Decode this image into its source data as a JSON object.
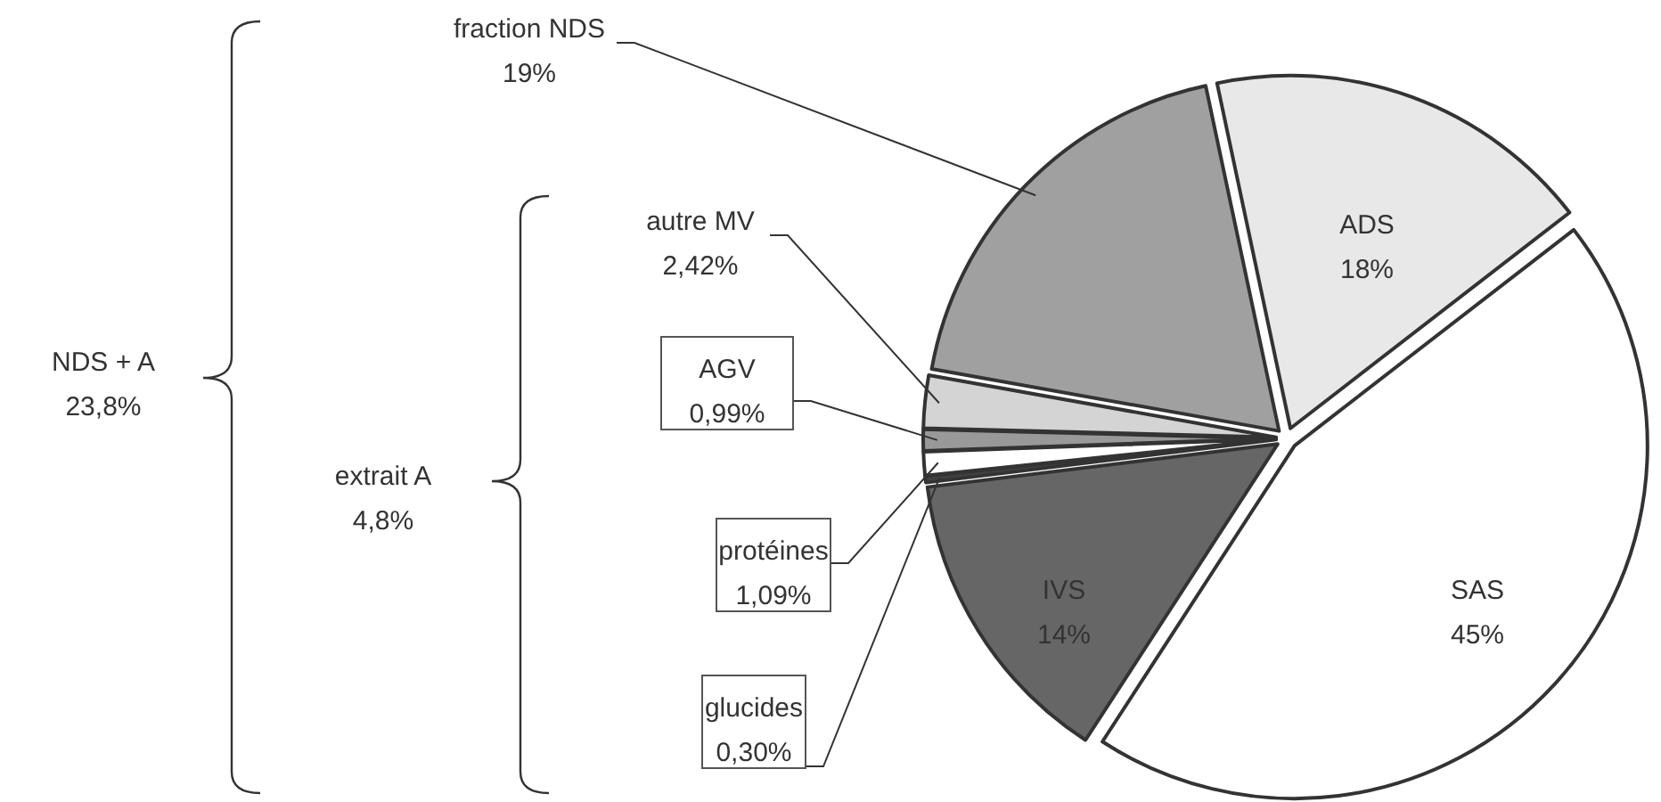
{
  "chart_data": {
    "type": "pie",
    "categories": [
      "ADS",
      "SAS",
      "IVS",
      "glucides",
      "protéines",
      "AGV",
      "autre MV",
      "fraction NDS"
    ],
    "values": [
      18,
      45,
      14,
      0.3,
      1.09,
      0.99,
      2.42,
      19
    ],
    "value_labels": [
      "18%",
      "45%",
      "14%",
      "0,30%",
      "1,09%",
      "0,99%",
      "2,42%",
      "19%"
    ],
    "colors": [
      "#e8e8e8",
      "#ffffff",
      "#666666",
      "#404040",
      "#ffffff",
      "#999999",
      "#d4d4d4",
      "#a0a0a0"
    ],
    "annotations": [
      "NDS + A\n23,8%",
      "extrait A\n4,8%"
    ]
  }
}
